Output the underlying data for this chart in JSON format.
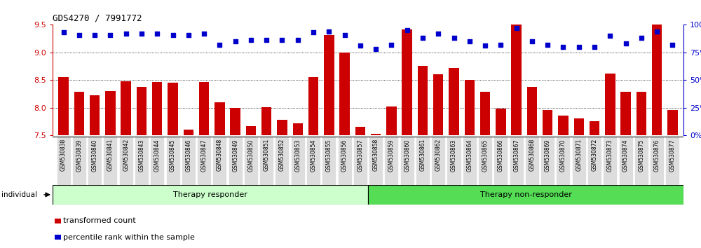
{
  "title": "GDS4270 / 7991772",
  "samples": [
    "GSM530838",
    "GSM530839",
    "GSM530840",
    "GSM530841",
    "GSM530842",
    "GSM530843",
    "GSM530844",
    "GSM530845",
    "GSM530846",
    "GSM530847",
    "GSM530848",
    "GSM530849",
    "GSM530850",
    "GSM530851",
    "GSM530852",
    "GSM530853",
    "GSM530854",
    "GSM530855",
    "GSM530856",
    "GSM530857",
    "GSM530858",
    "GSM530859",
    "GSM530860",
    "GSM530861",
    "GSM530862",
    "GSM530863",
    "GSM530864",
    "GSM530865",
    "GSM530866",
    "GSM530867",
    "GSM530868",
    "GSM530869",
    "GSM530870",
    "GSM530871",
    "GSM530872",
    "GSM530873",
    "GSM530874",
    "GSM530875",
    "GSM530876",
    "GSM530877"
  ],
  "bar_values": [
    8.55,
    8.28,
    8.22,
    8.3,
    8.48,
    8.37,
    8.47,
    8.45,
    7.6,
    8.46,
    8.1,
    8.0,
    7.67,
    8.01,
    7.78,
    7.72,
    8.55,
    9.31,
    9.0,
    7.65,
    7.52,
    8.02,
    9.42,
    8.75,
    8.6,
    8.72,
    8.5,
    8.28,
    7.98,
    9.7,
    8.37,
    7.95,
    7.85,
    7.8,
    7.75,
    8.62,
    8.28,
    8.28,
    9.68,
    7.95
  ],
  "percentile_values": [
    93,
    91,
    91,
    91,
    92,
    92,
    92,
    91,
    91,
    92,
    82,
    85,
    86,
    86,
    86,
    86,
    93,
    94,
    91,
    81,
    78,
    82,
    95,
    88,
    92,
    88,
    85,
    81,
    82,
    97,
    85,
    82,
    80,
    80,
    80,
    90,
    83,
    88,
    94,
    82
  ],
  "group1_label": "Therapy responder",
  "group2_label": "Therapy non-responder",
  "group1_count": 20,
  "group2_count": 20,
  "individual_label": "individual",
  "left_ylim": [
    7.5,
    9.5
  ],
  "right_ylim": [
    0,
    100
  ],
  "left_yticks": [
    7.5,
    8.0,
    8.5,
    9.0,
    9.5
  ],
  "right_yticks": [
    0,
    25,
    50,
    75,
    100
  ],
  "bar_color": "#cc0000",
  "dot_color": "#0000cc",
  "group1_color": "#ccffcc",
  "group2_color": "#55dd55",
  "bg_color": "#ffffff",
  "grid_color": "#000000",
  "tick_label_bg": "#dddddd",
  "legend_bar_label": "transformed count",
  "legend_dot_label": "percentile rank within the sample"
}
